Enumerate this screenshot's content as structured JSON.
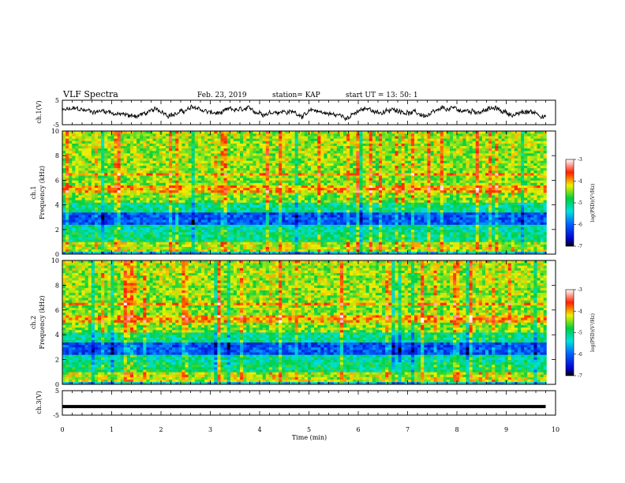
{
  "header": {
    "title": "VLF Spectra",
    "date": "Feb. 23, 2019",
    "station": "station= KAP",
    "start": "start  UT =  13: 50: 1"
  },
  "chart_data": [
    {
      "panel": "ch1-waveform",
      "type": "line",
      "ylabel": "ch.1(V)",
      "yticks": [
        "5",
        "-5"
      ],
      "ylim": [
        -5,
        5
      ],
      "xlim": [
        0,
        10
      ],
      "x_extent_min": 9.8,
      "description_values": "noisy signal oscillating roughly between -2.5 and 2.5 V"
    },
    {
      "panel": "ch1-spectrogram",
      "type": "heatmap",
      "ylabel": "ch.1",
      "ylabel2": "Frequency (kHz)",
      "yticks": [
        "0",
        "2",
        "4",
        "6",
        "8",
        "10"
      ],
      "ylim": [
        0,
        10
      ],
      "xlim": [
        0,
        10
      ],
      "colorbar_label": "log(PSD)(V²/Hz)",
      "colorbar_ticks": [
        "-3",
        "-4",
        "-5",
        "-6",
        "-7"
      ],
      "colorbar_range": [
        -7,
        -3
      ]
    },
    {
      "panel": "ch2-spectrogram",
      "type": "heatmap",
      "ylabel": "ch.2",
      "ylabel2": "Frequency (kHz)",
      "yticks": [
        "0",
        "2",
        "4",
        "6",
        "8",
        "10"
      ],
      "ylim": [
        0,
        10
      ],
      "xlim": [
        0,
        10
      ],
      "colorbar_label": "log(PSD)(V²/Hz)",
      "colorbar_ticks": [
        "-3",
        "-4",
        "-5",
        "-6",
        "-7"
      ],
      "colorbar_range": [
        -7,
        -3
      ]
    },
    {
      "panel": "ch3-waveform",
      "type": "line",
      "ylabel": "ch.3(V)",
      "yticks": [
        "5",
        "-5"
      ],
      "ylim": [
        -5,
        5
      ],
      "constant_value": -1.5
    }
  ],
  "xaxis": {
    "label": "Time (min)",
    "ticks": [
      "0",
      "1",
      "2",
      "3",
      "4",
      "5",
      "6",
      "7",
      "8",
      "9",
      "10"
    ]
  }
}
